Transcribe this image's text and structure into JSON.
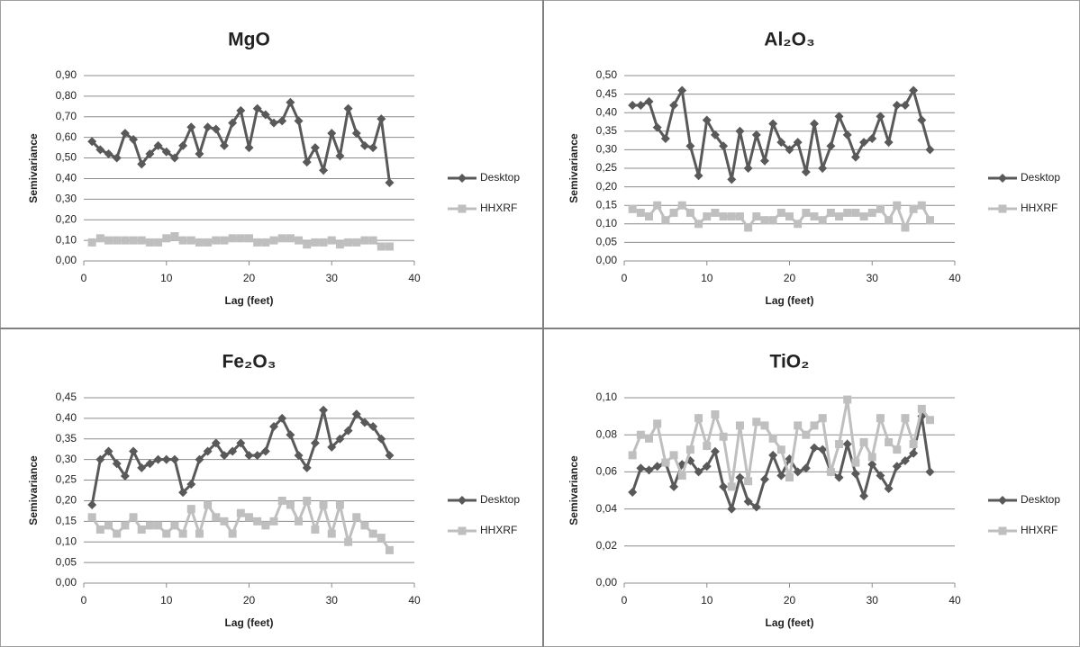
{
  "chart_data": [
    {
      "type": "line",
      "title": "MgO",
      "xlabel": "Lag (feet)",
      "ylabel": "Semivariance",
      "grid": true,
      "legend": "right",
      "x": [
        1,
        2,
        3,
        4,
        5,
        6,
        7,
        8,
        9,
        10,
        11,
        12,
        13,
        14,
        15,
        16,
        17,
        18,
        19,
        20,
        21,
        22,
        23,
        24,
        25,
        26,
        27,
        28,
        29,
        30,
        31,
        32,
        33,
        34,
        35,
        36,
        37
      ],
      "xlim": [
        0,
        40
      ],
      "xticks": [
        0,
        10,
        20,
        30,
        40
      ],
      "ylim": [
        0,
        0.9
      ],
      "yticks": [
        {
          "value": 0,
          "label": "0,00"
        },
        {
          "value": 0.1,
          "label": "0,10"
        },
        {
          "value": 0.2,
          "label": "0,20"
        },
        {
          "value": 0.3,
          "label": "0,30"
        },
        {
          "value": 0.4,
          "label": "0,40"
        },
        {
          "value": 0.5,
          "label": "0,50"
        },
        {
          "value": 0.6,
          "label": "0,60"
        },
        {
          "value": 0.7,
          "label": "0,70"
        },
        {
          "value": 0.8,
          "label": "0,80"
        },
        {
          "value": 0.9,
          "label": "0,90"
        }
      ],
      "series": [
        {
          "name": "Desktop",
          "color": "#595959",
          "marker": "diamond",
          "values": [
            0.58,
            0.54,
            0.52,
            0.5,
            0.62,
            0.59,
            0.47,
            0.52,
            0.56,
            0.53,
            0.5,
            0.56,
            0.65,
            0.52,
            0.65,
            0.64,
            0.56,
            0.67,
            0.73,
            0.55,
            0.74,
            0.71,
            0.67,
            0.68,
            0.77,
            0.68,
            0.48,
            0.55,
            0.44,
            0.62,
            0.51,
            0.74,
            0.62,
            0.56,
            0.55,
            0.69,
            0.38
          ]
        },
        {
          "name": "HHXRF",
          "color": "#bfbfbf",
          "marker": "square",
          "values": [
            0.09,
            0.11,
            0.1,
            0.1,
            0.1,
            0.1,
            0.1,
            0.09,
            0.09,
            0.11,
            0.12,
            0.1,
            0.1,
            0.09,
            0.09,
            0.1,
            0.1,
            0.11,
            0.11,
            0.11,
            0.09,
            0.09,
            0.1,
            0.11,
            0.11,
            0.1,
            0.08,
            0.09,
            0.09,
            0.1,
            0.08,
            0.09,
            0.09,
            0.1,
            0.1,
            0.07,
            0.07
          ]
        }
      ]
    },
    {
      "type": "line",
      "title": "Al₂O₃",
      "xlabel": "Lag (feet)",
      "ylabel": "Semivariance",
      "grid": true,
      "legend": "right",
      "x": [
        1,
        2,
        3,
        4,
        5,
        6,
        7,
        8,
        9,
        10,
        11,
        12,
        13,
        14,
        15,
        16,
        17,
        18,
        19,
        20,
        21,
        22,
        23,
        24,
        25,
        26,
        27,
        28,
        29,
        30,
        31,
        32,
        33,
        34,
        35,
        36,
        37
      ],
      "xlim": [
        0,
        40
      ],
      "xticks": [
        0,
        10,
        20,
        30,
        40
      ],
      "ylim": [
        0,
        0.5
      ],
      "yticks": [
        {
          "value": 0,
          "label": "0,00"
        },
        {
          "value": 0.05,
          "label": "0,05"
        },
        {
          "value": 0.1,
          "label": "0,10"
        },
        {
          "value": 0.15,
          "label": "0,15"
        },
        {
          "value": 0.2,
          "label": "0,20"
        },
        {
          "value": 0.25,
          "label": "0,25"
        },
        {
          "value": 0.3,
          "label": "0,30"
        },
        {
          "value": 0.35,
          "label": "0,35"
        },
        {
          "value": 0.4,
          "label": "0,40"
        },
        {
          "value": 0.45,
          "label": "0,45"
        },
        {
          "value": 0.5,
          "label": "0,50"
        }
      ],
      "series": [
        {
          "name": "Desktop",
          "color": "#595959",
          "marker": "diamond",
          "values": [
            0.42,
            0.42,
            0.43,
            0.36,
            0.33,
            0.42,
            0.46,
            0.31,
            0.23,
            0.38,
            0.34,
            0.31,
            0.22,
            0.35,
            0.25,
            0.34,
            0.27,
            0.37,
            0.32,
            0.3,
            0.32,
            0.24,
            0.37,
            0.25,
            0.31,
            0.39,
            0.34,
            0.28,
            0.32,
            0.33,
            0.39,
            0.32,
            0.42,
            0.42,
            0.46,
            0.38,
            0.3
          ]
        },
        {
          "name": "HHXRF",
          "color": "#bfbfbf",
          "marker": "square",
          "values": [
            0.14,
            0.13,
            0.12,
            0.15,
            0.11,
            0.13,
            0.15,
            0.13,
            0.1,
            0.12,
            0.13,
            0.12,
            0.12,
            0.12,
            0.09,
            0.12,
            0.11,
            0.11,
            0.13,
            0.12,
            0.1,
            0.13,
            0.12,
            0.11,
            0.13,
            0.12,
            0.13,
            0.13,
            0.12,
            0.13,
            0.14,
            0.11,
            0.15,
            0.09,
            0.14,
            0.15,
            0.11
          ]
        }
      ]
    },
    {
      "type": "line",
      "title": "Fe₂O₃",
      "xlabel": "Lag (feet)",
      "ylabel": "Semivariance",
      "grid": true,
      "legend": "right",
      "x": [
        1,
        2,
        3,
        4,
        5,
        6,
        7,
        8,
        9,
        10,
        11,
        12,
        13,
        14,
        15,
        16,
        17,
        18,
        19,
        20,
        21,
        22,
        23,
        24,
        25,
        26,
        27,
        28,
        29,
        30,
        31,
        32,
        33,
        34,
        35,
        36,
        37
      ],
      "xlim": [
        0,
        40
      ],
      "xticks": [
        0,
        10,
        20,
        30,
        40
      ],
      "ylim": [
        0,
        0.45
      ],
      "yticks": [
        {
          "value": 0,
          "label": "0,00"
        },
        {
          "value": 0.05,
          "label": "0,05"
        },
        {
          "value": 0.1,
          "label": "0,10"
        },
        {
          "value": 0.15,
          "label": "0,15"
        },
        {
          "value": 0.2,
          "label": "0,20"
        },
        {
          "value": 0.25,
          "label": "0,25"
        },
        {
          "value": 0.3,
          "label": "0,30"
        },
        {
          "value": 0.35,
          "label": "0,35"
        },
        {
          "value": 0.4,
          "label": "0,40"
        },
        {
          "value": 0.45,
          "label": "0,45"
        }
      ],
      "series": [
        {
          "name": "Desktop",
          "color": "#595959",
          "marker": "diamond",
          "values": [
            0.19,
            0.3,
            0.32,
            0.29,
            0.26,
            0.32,
            0.28,
            0.29,
            0.3,
            0.3,
            0.3,
            0.22,
            0.24,
            0.3,
            0.32,
            0.34,
            0.31,
            0.32,
            0.34,
            0.31,
            0.31,
            0.32,
            0.38,
            0.4,
            0.36,
            0.31,
            0.28,
            0.34,
            0.42,
            0.33,
            0.35,
            0.37,
            0.41,
            0.39,
            0.38,
            0.35,
            0.31
          ]
        },
        {
          "name": "HHXRF",
          "color": "#bfbfbf",
          "marker": "square",
          "values": [
            0.16,
            0.13,
            0.14,
            0.12,
            0.14,
            0.16,
            0.13,
            0.14,
            0.14,
            0.12,
            0.14,
            0.12,
            0.18,
            0.12,
            0.19,
            0.16,
            0.15,
            0.12,
            0.17,
            0.16,
            0.15,
            0.14,
            0.15,
            0.2,
            0.19,
            0.15,
            0.2,
            0.13,
            0.19,
            0.12,
            0.19,
            0.1,
            0.16,
            0.14,
            0.12,
            0.11,
            0.08
          ]
        }
      ]
    },
    {
      "type": "line",
      "title": "TiO₂",
      "xlabel": "Lag (feet)",
      "ylabel": "Semivariance",
      "grid": true,
      "legend": "right",
      "x": [
        1,
        2,
        3,
        4,
        5,
        6,
        7,
        8,
        9,
        10,
        11,
        12,
        13,
        14,
        15,
        16,
        17,
        18,
        19,
        20,
        21,
        22,
        23,
        24,
        25,
        26,
        27,
        28,
        29,
        30,
        31,
        32,
        33,
        34,
        35,
        36,
        37
      ],
      "xlim": [
        0,
        40
      ],
      "xticks": [
        0,
        10,
        20,
        30,
        40
      ],
      "ylim": [
        0,
        0.1
      ],
      "yticks": [
        {
          "value": 0,
          "label": "0,00"
        },
        {
          "value": 0.02,
          "label": "0,02"
        },
        {
          "value": 0.04,
          "label": "0,04"
        },
        {
          "value": 0.06,
          "label": "0,06"
        },
        {
          "value": 0.08,
          "label": "0,08"
        },
        {
          "value": 0.1,
          "label": "0,10"
        }
      ],
      "series": [
        {
          "name": "Desktop",
          "color": "#595959",
          "marker": "diamond",
          "values": [
            0.049,
            0.062,
            0.061,
            0.063,
            0.065,
            0.052,
            0.064,
            0.066,
            0.06,
            0.063,
            0.071,
            0.052,
            0.04,
            0.057,
            0.044,
            0.041,
            0.056,
            0.069,
            0.058,
            0.067,
            0.06,
            0.062,
            0.073,
            0.072,
            0.06,
            0.057,
            0.075,
            0.059,
            0.047,
            0.064,
            0.058,
            0.051,
            0.063,
            0.066,
            0.07,
            0.09,
            0.06
          ]
        },
        {
          "name": "HHXRF",
          "color": "#bfbfbf",
          "marker": "square",
          "values": [
            0.069,
            0.08,
            0.078,
            0.086,
            0.065,
            0.069,
            0.058,
            0.072,
            0.089,
            0.074,
            0.091,
            0.079,
            0.052,
            0.085,
            0.055,
            0.087,
            0.085,
            0.078,
            0.072,
            0.057,
            0.085,
            0.08,
            0.085,
            0.089,
            0.06,
            0.075,
            0.099,
            0.065,
            0.076,
            0.068,
            0.089,
            0.076,
            0.072,
            0.089,
            0.075,
            0.094,
            0.088
          ]
        }
      ]
    }
  ]
}
